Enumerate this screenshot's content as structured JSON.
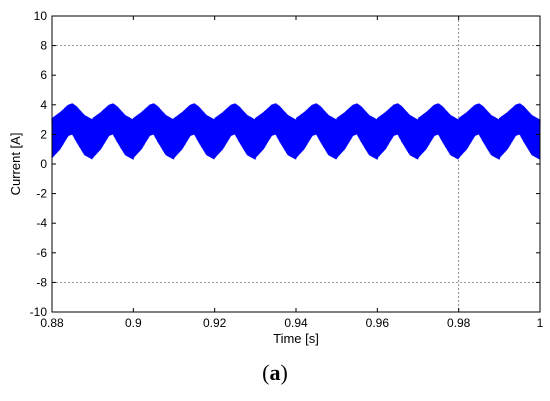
{
  "chart_data": {
    "type": "line",
    "title": "",
    "xlabel": "Time [s]",
    "ylabel": "Current [A]",
    "xlim": [
      0.88,
      1.0
    ],
    "ylim": [
      -10,
      10
    ],
    "x_ticks": [
      0.88,
      0.9,
      0.92,
      0.94,
      0.96,
      0.98,
      1.0
    ],
    "x_tick_labels": [
      "0.88",
      "0.9",
      "0.92",
      "0.94",
      "0.96",
      "0.98",
      "1"
    ],
    "y_ticks": [
      -10,
      -8,
      -6,
      -4,
      -2,
      0,
      2,
      4,
      6,
      8,
      10
    ],
    "y_tick_labels": [
      "-10",
      "-8",
      "-6",
      "-4",
      "-2",
      "0",
      "2",
      "4",
      "6",
      "8",
      "10"
    ],
    "grid": "dotted lines at y = 8, y = -8 and x = 0.98",
    "series": [
      {
        "color": "#0000ff",
        "style": "dense high-frequency ripple filling a band",
        "envelope_period": 0.01,
        "x": [
          0.88,
          0.882,
          0.884,
          0.885,
          0.886,
          0.888,
          0.89,
          0.892,
          0.894,
          0.895,
          0.896,
          0.898,
          0.9
        ],
        "upper_envelope": [
          3.1,
          3.5,
          4.0,
          4.1,
          3.9,
          3.3,
          3.0,
          3.4,
          3.9,
          4.1,
          3.9,
          3.3,
          3.0
        ],
        "lower_envelope": [
          0.4,
          1.0,
          1.9,
          2.0,
          1.5,
          0.6,
          0.3,
          1.0,
          1.9,
          2.0,
          1.5,
          0.6,
          0.3
        ]
      }
    ]
  },
  "caption": {
    "open": "(",
    "letter": "a",
    "close": ")"
  }
}
